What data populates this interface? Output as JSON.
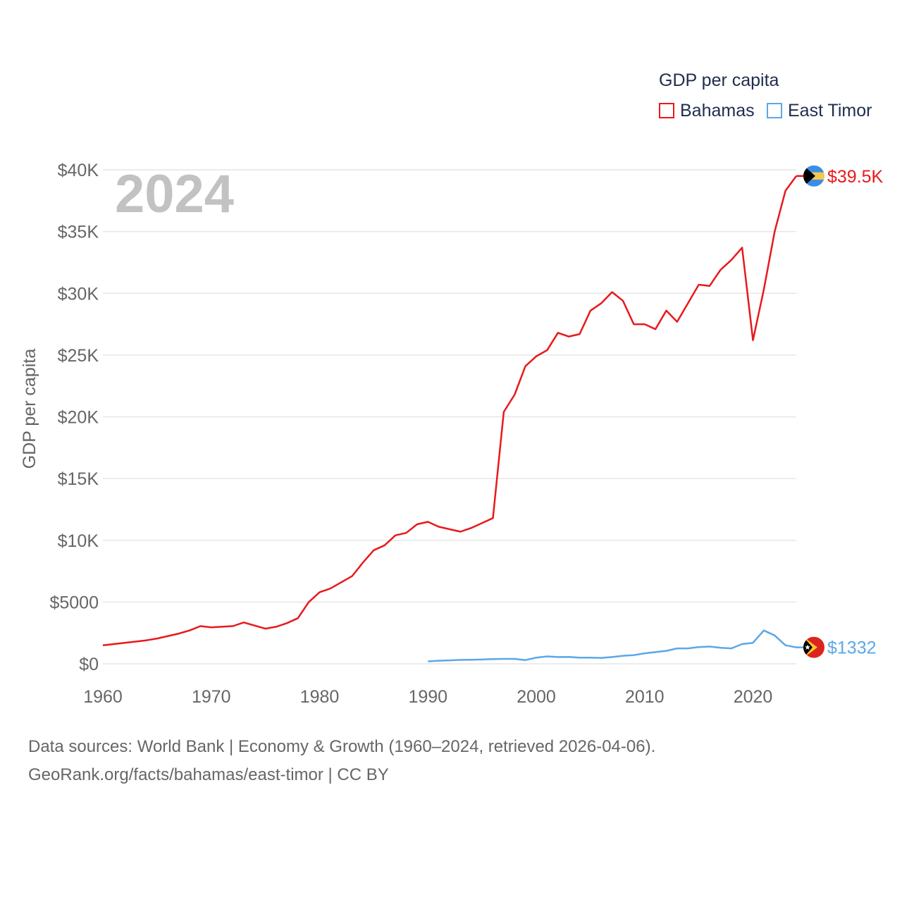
{
  "legend": {
    "title": "GDP per capita",
    "items": [
      {
        "label": "Bahamas",
        "color": "#e8191b"
      },
      {
        "label": "East Timor",
        "color": "#5ca7e8"
      }
    ]
  },
  "year_label": "2024",
  "source_lines": [
    "Data sources: World Bank | Economy & Growth (1960–2024, retrieved 2026-04-06).",
    "GeoRank.org/facts/bahamas/east-timor | CC BY"
  ],
  "chart_data": {
    "type": "line",
    "title": "GDP per capita",
    "xlabel": "",
    "ylabel": "GDP per capita",
    "xlim": [
      1960,
      2024
    ],
    "ylim": [
      0,
      40000
    ],
    "x_ticks": [
      1960,
      1970,
      1980,
      1990,
      2000,
      2010,
      2020
    ],
    "x_tick_labels": [
      "1960",
      "1970",
      "1980",
      "1990",
      "2000",
      "2010",
      "2020"
    ],
    "y_ticks": [
      0,
      5000,
      10000,
      15000,
      20000,
      25000,
      30000,
      35000,
      40000
    ],
    "y_tick_labels": [
      "$0",
      "$5000",
      "$10K",
      "$15K",
      "$20K",
      "$25K",
      "$30K",
      "$35K",
      "$40K"
    ],
    "grid": true,
    "series": [
      {
        "name": "Bahamas",
        "color": "#e8191b",
        "end_label": "$39.5K",
        "x": [
          1960,
          1961,
          1962,
          1963,
          1964,
          1965,
          1966,
          1967,
          1968,
          1969,
          1970,
          1971,
          1972,
          1973,
          1974,
          1975,
          1976,
          1977,
          1978,
          1979,
          1980,
          1981,
          1982,
          1983,
          1984,
          1985,
          1986,
          1987,
          1988,
          1989,
          1990,
          1991,
          1992,
          1993,
          1994,
          1995,
          1996,
          1997,
          1998,
          1999,
          2000,
          2001,
          2002,
          2003,
          2004,
          2005,
          2006,
          2007,
          2008,
          2009,
          2010,
          2011,
          2012,
          2013,
          2014,
          2015,
          2016,
          2017,
          2018,
          2019,
          2020,
          2021,
          2022,
          2023,
          2024
        ],
        "y": [
          1500,
          1600,
          1700,
          1800,
          1900,
          2050,
          2250,
          2450,
          2700,
          3050,
          2950,
          3000,
          3050,
          3350,
          3100,
          2850,
          3000,
          3300,
          3700,
          5000,
          5800,
          6100,
          6600,
          7100,
          8200,
          9200,
          9600,
          10400,
          10600,
          11300,
          11500,
          11100,
          10900,
          10700,
          11000,
          11400,
          11800,
          20400,
          21800,
          24100,
          24900,
          25400,
          26800,
          26500,
          26700,
          28600,
          29200,
          30100,
          29400,
          27500,
          27500,
          27100,
          28600,
          27700,
          29200,
          30700,
          30600,
          31900,
          32700,
          33700,
          26200,
          30300,
          35000,
          38300,
          39500
        ]
      },
      {
        "name": "East Timor",
        "color": "#5ca7e8",
        "end_label": "$1332",
        "x": [
          1990,
          1991,
          1992,
          1993,
          1994,
          1995,
          1996,
          1997,
          1998,
          1999,
          2000,
          2001,
          2002,
          2003,
          2004,
          2005,
          2006,
          2007,
          2008,
          2009,
          2010,
          2011,
          2012,
          2013,
          2014,
          2015,
          2016,
          2017,
          2018,
          2019,
          2020,
          2021,
          2022,
          2023,
          2024
        ],
        "y": [
          200,
          250,
          280,
          320,
          330,
          350,
          380,
          400,
          400,
          300,
          500,
          600,
          550,
          560,
          500,
          500,
          480,
          550,
          650,
          700,
          850,
          950,
          1050,
          1250,
          1250,
          1350,
          1400,
          1300,
          1250,
          1600,
          1700,
          2700,
          2300,
          1500,
          1332
        ]
      }
    ]
  }
}
